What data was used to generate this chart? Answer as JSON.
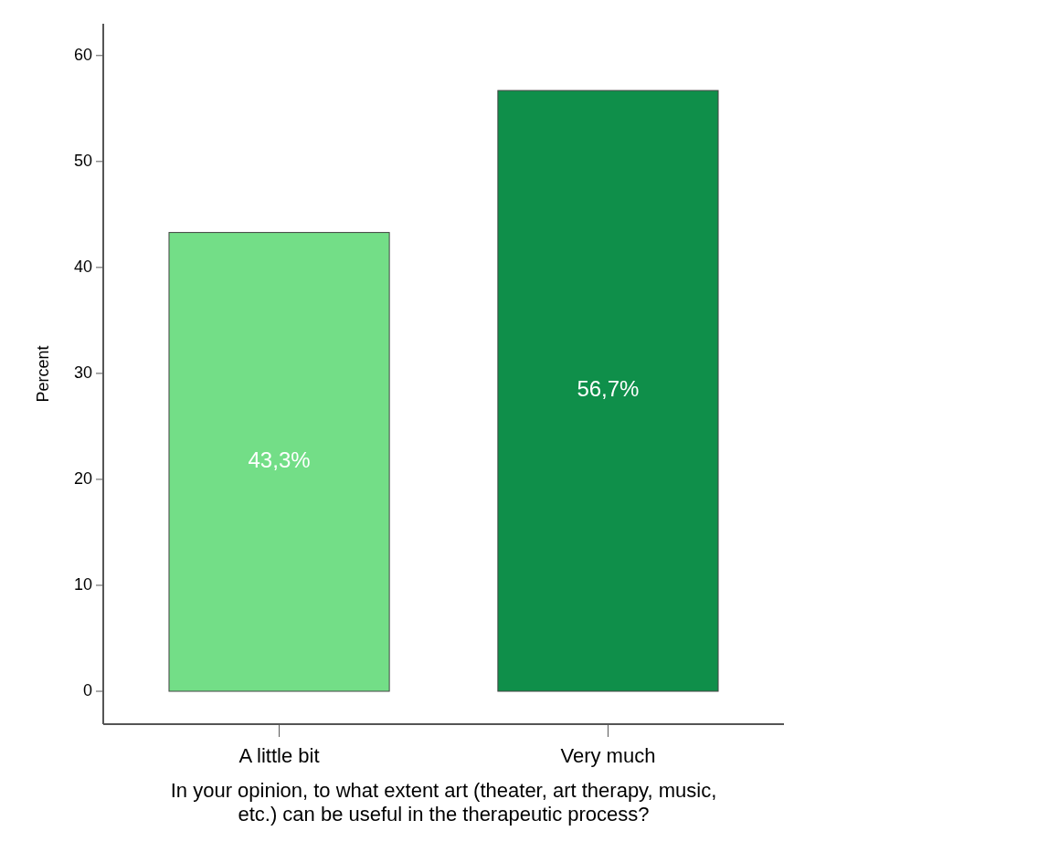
{
  "chart_data": {
    "type": "bar",
    "ylabel": "Percent",
    "xlabel": "In your opinion, to what extent art (theater, art therapy, music, etc.) can be useful in the therapeutic process?",
    "categories": [
      "A little bit",
      "Very much"
    ],
    "values": [
      43.3,
      56.7
    ],
    "colors": [
      "#73de87",
      "#0f8f4a"
    ],
    "value_labels": [
      "43,3%",
      "56,7%"
    ],
    "ylim": [
      0,
      63
    ],
    "yticks": [
      0,
      10,
      20,
      30,
      40,
      50,
      60
    ],
    "grid": false
  }
}
